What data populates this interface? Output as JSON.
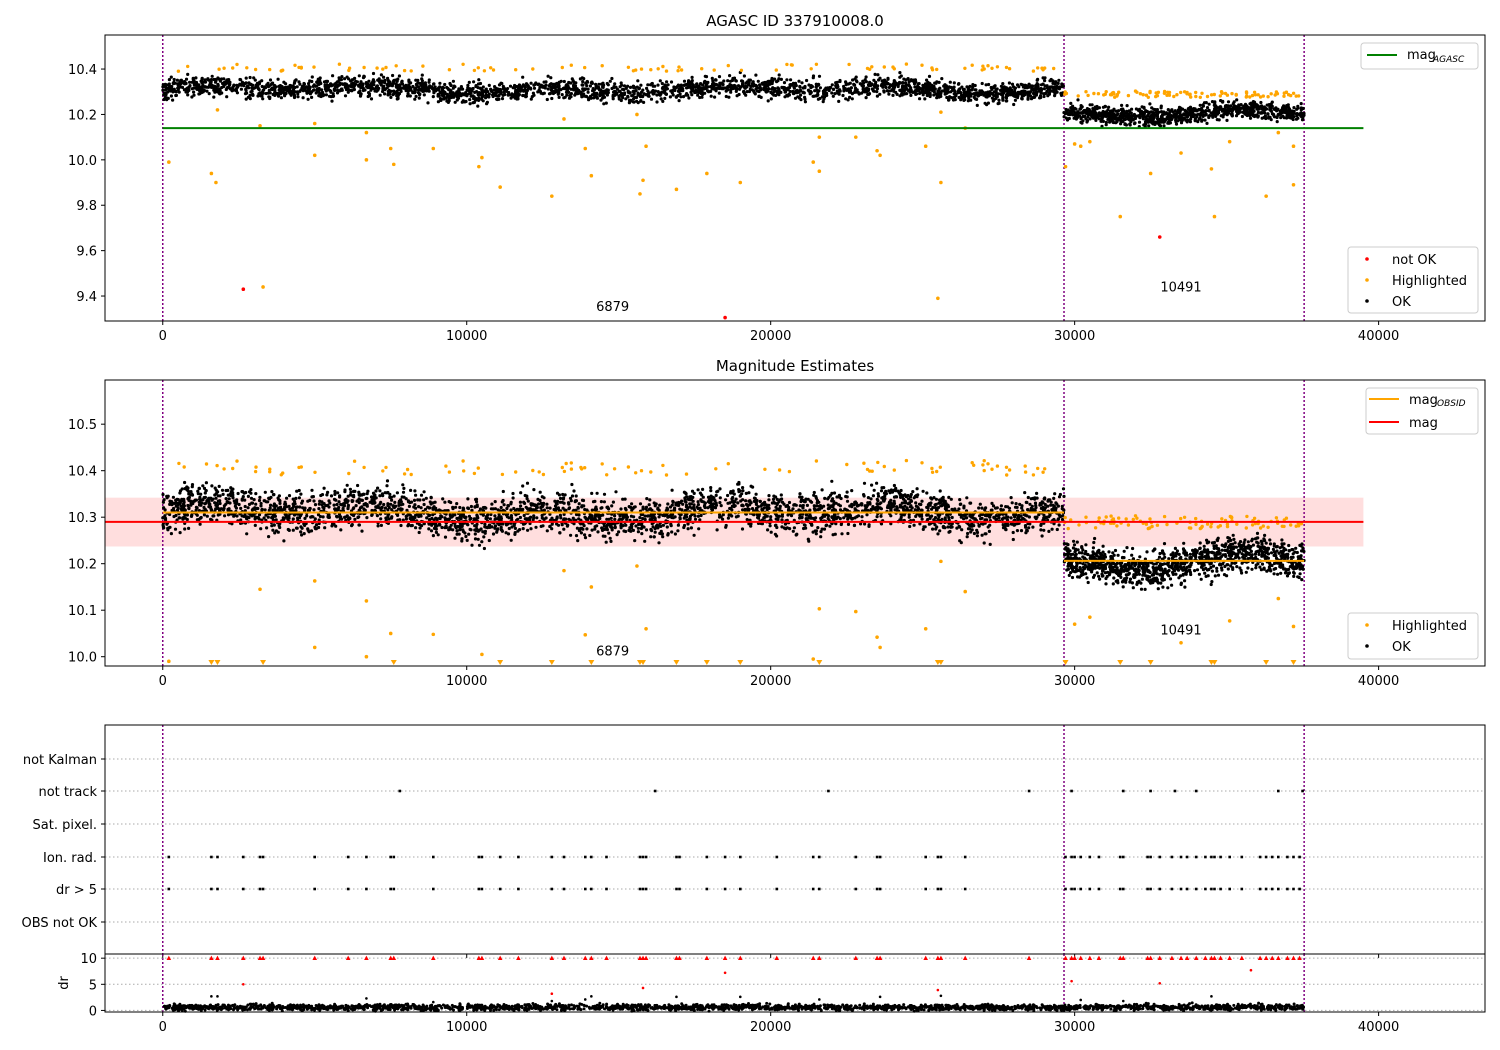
{
  "chart_data": [
    {
      "type": "scatter",
      "title": "AGASC ID 337910008.0",
      "xlabel": "",
      "ylabel": "",
      "xlim": [
        -1900,
        43500
      ],
      "ylim": [
        9.29,
        10.55
      ],
      "xticks": [
        0,
        10000,
        20000,
        30000,
        40000
      ],
      "xtick_labels": [
        "0",
        "10000",
        "20000",
        "30000",
        "40000"
      ],
      "yticks": [
        9.4,
        9.6,
        9.8,
        10.0,
        10.2,
        10.4
      ],
      "ytick_labels": [
        "9.4",
        "9.6",
        "9.8",
        "10.0",
        "10.2",
        "10.4"
      ],
      "obs_boundaries": [
        0,
        29650,
        37550
      ],
      "obs_labels": [
        {
          "x": 14800,
          "y": 9.335,
          "text": "6879"
        },
        {
          "x": 33500,
          "y": 9.42,
          "text": "10491"
        }
      ],
      "mag_agasc": 10.14,
      "mag_agasc_range": [
        0,
        39500
      ],
      "series": [
        {
          "name": "OK",
          "color": "#000000",
          "segments": [
            {
              "x": [
                0,
                29650
              ],
              "mean": 10.31,
              "spread": 0.04
            },
            {
              "x": [
                29650,
                37550
              ],
              "mean": 10.205,
              "spread": 0.035
            }
          ]
        },
        {
          "name": "Highlighted",
          "color": "#ffa500",
          "outliers": [
            [
              200,
              9.99
            ],
            [
              1600,
              9.94
            ],
            [
              1750,
              9.9
            ],
            [
              1800,
              10.22
            ],
            [
              3200,
              10.15
            ],
            [
              3300,
              9.44
            ],
            [
              5000,
              10.02
            ],
            [
              5000,
              10.16
            ],
            [
              6700,
              10.12
            ],
            [
              6700,
              10.0
            ],
            [
              7500,
              10.05
            ],
            [
              7600,
              9.98
            ],
            [
              8900,
              10.05
            ],
            [
              10400,
              9.97
            ],
            [
              10500,
              10.01
            ],
            [
              11100,
              9.88
            ],
            [
              12800,
              9.84
            ],
            [
              13200,
              10.18
            ],
            [
              13900,
              10.05
            ],
            [
              14100,
              9.93
            ],
            [
              15700,
              9.85
            ],
            [
              15800,
              9.91
            ],
            [
              15900,
              10.06
            ],
            [
              15600,
              10.2
            ],
            [
              16900,
              9.87
            ],
            [
              17900,
              9.94
            ],
            [
              19000,
              9.9
            ],
            [
              21400,
              9.99
            ],
            [
              21600,
              9.95
            ],
            [
              21600,
              10.1
            ],
            [
              22800,
              10.1
            ],
            [
              23500,
              10.04
            ],
            [
              23600,
              10.02
            ],
            [
              25100,
              10.06
            ],
            [
              25500,
              9.39
            ],
            [
              25600,
              9.9
            ],
            [
              25600,
              10.21
            ],
            [
              26400,
              10.14
            ],
            [
              29700,
              9.97
            ],
            [
              30000,
              10.07
            ],
            [
              30200,
              10.06
            ],
            [
              30500,
              10.08
            ],
            [
              31500,
              9.75
            ],
            [
              32500,
              9.94
            ],
            [
              33500,
              10.03
            ],
            [
              34500,
              9.96
            ],
            [
              34600,
              9.75
            ],
            [
              35100,
              10.08
            ],
            [
              36300,
              9.84
            ],
            [
              36700,
              10.12
            ],
            [
              37200,
              10.06
            ],
            [
              37200,
              9.89
            ]
          ]
        },
        {
          "name": "not OK",
          "color": "#ff0000",
          "points": [
            [
              2650,
              9.43
            ],
            [
              18500,
              9.305
            ],
            [
              32800,
              9.66
            ]
          ]
        }
      ],
      "legends": [
        {
          "location": "upper right",
          "entries": [
            {
              "label": "mag",
              "subscript": "AGASC",
              "kind": "line",
              "color": "#008000"
            }
          ]
        },
        {
          "location": "lower right",
          "entries": [
            {
              "label": "not OK",
              "kind": "dot",
              "color": "#ff0000"
            },
            {
              "label": "Highlighted",
              "kind": "dot",
              "color": "#ffa500"
            },
            {
              "label": "OK",
              "kind": "dot",
              "color": "#000000"
            }
          ]
        }
      ]
    },
    {
      "type": "scatter",
      "title": "Magnitude Estimates",
      "xlabel": "",
      "ylabel": "",
      "xlim": [
        -1900,
        43500
      ],
      "ylim": [
        9.98,
        10.595
      ],
      "xticks": [
        0,
        10000,
        20000,
        30000,
        40000
      ],
      "xtick_labels": [
        "0",
        "10000",
        "20000",
        "30000",
        "40000"
      ],
      "yticks": [
        10.0,
        10.1,
        10.2,
        10.3,
        10.4,
        10.5
      ],
      "ytick_labels": [
        "10.0",
        "10.1",
        "10.2",
        "10.3",
        "10.4",
        "10.5"
      ],
      "obs_boundaries": [
        0,
        29650,
        37550
      ],
      "obs_labels": [
        {
          "x": 14800,
          "y": 10.003,
          "text": "6879"
        },
        {
          "x": 33500,
          "y": 10.048,
          "text": "10491"
        }
      ],
      "mag": 10.29,
      "mag_band": [
        10.237,
        10.342
      ],
      "mag_range": [
        -1900,
        39500
      ],
      "mag_obsid": [
        {
          "x": [
            0,
            29650
          ],
          "value": 10.31
        },
        {
          "x": [
            29650,
            37550
          ],
          "value": 10.206
        }
      ],
      "series": [
        {
          "name": "OK",
          "color": "#000000",
          "segments": [
            {
              "x": [
                0,
                29650
              ],
              "mean": 10.31,
              "spread": 0.04
            },
            {
              "x": [
                29650,
                37550
              ],
              "mean": 10.205,
              "spread": 0.035
            }
          ]
        },
        {
          "name": "Highlighted",
          "color": "#ffa500",
          "outliers": [
            [
              3200,
              10.145
            ],
            [
              5000,
              10.163
            ],
            [
              5000,
              10.02
            ],
            [
              6700,
              10.12
            ],
            [
              6700,
              10.0
            ],
            [
              7500,
              10.05
            ],
            [
              8900,
              10.048
            ],
            [
              10500,
              10.005
            ],
            [
              13900,
              10.047
            ],
            [
              14100,
              10.15
            ],
            [
              13200,
              10.185
            ],
            [
              15600,
              10.195
            ],
            [
              15900,
              10.06
            ],
            [
              21600,
              10.103
            ],
            [
              22800,
              10.097
            ],
            [
              23500,
              10.042
            ],
            [
              23600,
              10.02
            ],
            [
              25100,
              10.06
            ],
            [
              25600,
              10.205
            ],
            [
              26400,
              10.14
            ],
            [
              30000,
              10.07
            ],
            [
              30500,
              10.085
            ],
            [
              33500,
              10.03
            ],
            [
              35100,
              10.077
            ],
            [
              36700,
              10.125
            ],
            [
              37200,
              10.065
            ],
            [
              21400,
              9.995
            ],
            [
              200,
              9.99
            ]
          ],
          "clipped_below": [
            1600,
            1800,
            3300,
            7600,
            11100,
            12800,
            14100,
            15700,
            15800,
            16900,
            17900,
            19000,
            21600,
            25500,
            25600,
            29700,
            31500,
            32500,
            34500,
            34600,
            36300,
            37200
          ]
        }
      ],
      "legends": [
        {
          "location": "upper right",
          "entries": [
            {
              "label": "mag",
              "subscript": "OBSID",
              "kind": "line",
              "color": "#ffa500"
            },
            {
              "label": "mag",
              "kind": "line",
              "color": "#ff0000"
            }
          ]
        },
        {
          "location": "lower right",
          "entries": [
            {
              "label": "Highlighted",
              "kind": "dot",
              "color": "#ffa500"
            },
            {
              "label": "OK",
              "kind": "dot",
              "color": "#000000"
            }
          ]
        }
      ]
    },
    {
      "type": "scatter",
      "title": "",
      "xlabel": "",
      "ylabel": "",
      "xlim": [
        -1900,
        43500
      ],
      "xticks": [
        0,
        10000,
        20000,
        30000,
        40000
      ],
      "categories": [
        "not Kalman",
        "not track",
        "Sat. pixel.",
        "Ion. rad.",
        "dr > 5",
        "OBS not OK"
      ],
      "obs_boundaries": [
        0,
        29650,
        37550
      ],
      "flags": {
        "not Kalman": [],
        "not track": [
          7800,
          16200,
          21900,
          28500,
          29900,
          31600,
          32500,
          33300,
          34000,
          36700,
          37500
        ],
        "Sat. pixel.": [],
        "Ion. rad.": [
          200,
          1600,
          1800,
          2650,
          3200,
          3300,
          5000,
          6100,
          6700,
          7500,
          7600,
          8900,
          10400,
          10500,
          11100,
          11700,
          12800,
          13200,
          13900,
          14100,
          14600,
          15700,
          15800,
          15900,
          16900,
          17000,
          17900,
          18500,
          19000,
          20200,
          21400,
          21600,
          22800,
          23500,
          23600,
          25100,
          25500,
          25600,
          26400,
          29700,
          29900,
          30000,
          30200,
          30500,
          30800,
          31500,
          31600,
          32400,
          32500,
          32800,
          33200,
          33500,
          33700,
          34000,
          34300,
          34500,
          34600,
          34800,
          35100,
          35500,
          36100,
          36300,
          36500,
          36700,
          37000,
          37200,
          37400
        ],
        "dr > 5": [
          200,
          1600,
          1800,
          2650,
          3200,
          3300,
          5000,
          6100,
          6700,
          7500,
          7600,
          8900,
          10400,
          10500,
          11100,
          11700,
          12800,
          13200,
          13900,
          14100,
          14600,
          15700,
          15800,
          15900,
          16900,
          17000,
          17900,
          18500,
          19000,
          20200,
          21400,
          21600,
          22800,
          23500,
          23600,
          25100,
          25500,
          25600,
          26400,
          29700,
          29900,
          30000,
          30200,
          30500,
          30800,
          31500,
          31600,
          32400,
          32500,
          32800,
          33200,
          33500,
          33700,
          34000,
          34300,
          34500,
          34600,
          34800,
          35100,
          35500,
          36100,
          36300,
          36500,
          36700,
          37000,
          37200,
          37400
        ],
        "OBS not OK": []
      }
    },
    {
      "type": "scatter",
      "title": "",
      "xlabel": "",
      "ylabel": "dr",
      "xlim": [
        -1900,
        43500
      ],
      "ylim": [
        -0.3,
        10.8
      ],
      "xticks": [
        0,
        10000,
        20000,
        30000,
        40000
      ],
      "xtick_labels": [
        "0",
        "10000",
        "20000",
        "30000",
        "40000"
      ],
      "yticks": [
        0,
        5,
        10
      ],
      "ytick_labels": [
        "0",
        "5",
        "10"
      ],
      "obs_boundaries": [
        0,
        29650,
        37550
      ],
      "ok_range": [
        0,
        37550
      ],
      "ok_mean": 0.6,
      "clipped_red": [
        200,
        1600,
        1800,
        2650,
        3200,
        3300,
        5000,
        6100,
        6700,
        7500,
        7600,
        8900,
        10400,
        10500,
        11100,
        11700,
        12800,
        13200,
        13900,
        14100,
        14600,
        15700,
        15800,
        15900,
        16900,
        17000,
        17900,
        18500,
        19000,
        20200,
        21400,
        21600,
        22800,
        23500,
        23600,
        25100,
        25500,
        25600,
        26400,
        28500,
        29700,
        29900,
        30000,
        30200,
        30500,
        30800,
        31500,
        31600,
        32400,
        32500,
        32800,
        33200,
        33500,
        33700,
        34000,
        34300,
        34500,
        34600,
        34800,
        35100,
        35500,
        36100,
        36300,
        36500,
        36700,
        37000,
        37200,
        37400
      ],
      "red_points": [
        [
          18500,
          7.2
        ],
        [
          2650,
          5.0
        ],
        [
          12800,
          3.2
        ],
        [
          15800,
          4.3
        ],
        [
          25500,
          3.9
        ],
        [
          32800,
          5.2
        ],
        [
          35800,
          7.7
        ],
        [
          29900,
          5.6
        ]
      ],
      "black_points": [
        [
          1600,
          2.7
        ],
        [
          1800,
          2.7
        ],
        [
          6700,
          2.3
        ],
        [
          13900,
          2.1
        ],
        [
          14100,
          2.7
        ],
        [
          16900,
          2.6
        ],
        [
          19000,
          2.6
        ],
        [
          21600,
          2.1
        ],
        [
          23600,
          2.6
        ],
        [
          25600,
          2.8
        ],
        [
          30200,
          2.0
        ],
        [
          34500,
          2.7
        ],
        [
          12800,
          1.8
        ],
        [
          8900,
          1.6
        ],
        [
          31600,
          1.8
        ]
      ]
    }
  ]
}
